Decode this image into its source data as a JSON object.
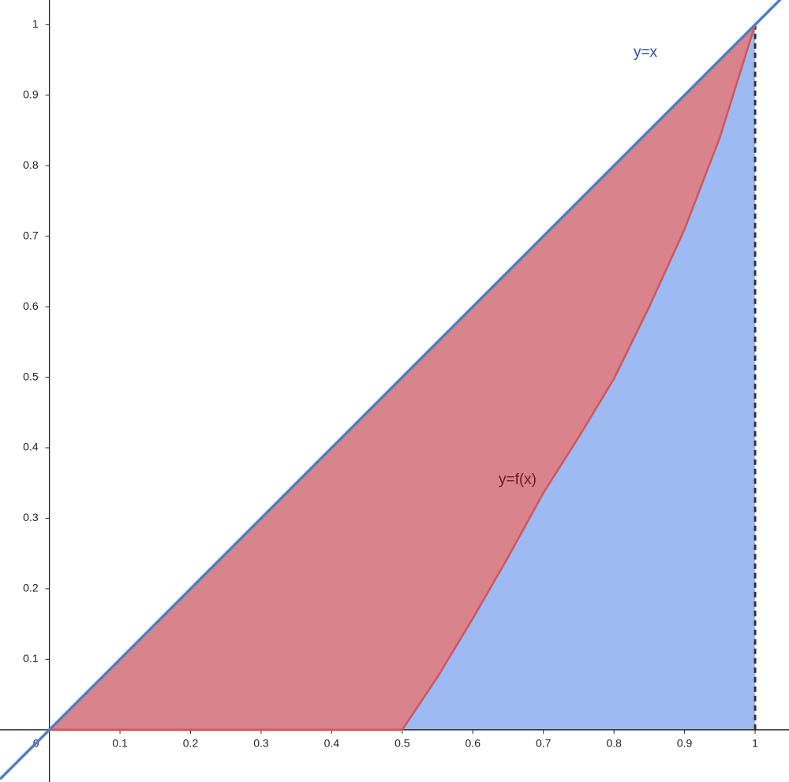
{
  "chart_data": {
    "type": "line",
    "xlim": [
      -0.07,
      1.048
    ],
    "ylim": [
      -0.074,
      1.035
    ],
    "xticks": [
      0,
      0.1,
      0.2,
      0.3,
      0.4,
      0.5,
      0.6,
      0.7,
      0.8,
      0.9,
      1
    ],
    "yticks": [
      0.1,
      0.2,
      0.3,
      0.4,
      0.5,
      0.6,
      0.7,
      0.8,
      0.9,
      1
    ],
    "series": [
      {
        "name": "y=x",
        "color": "#4a80c8",
        "label_color": "#2a4fa8",
        "x": [
          -0.07,
          1.048
        ],
        "values": [
          -0.07,
          1.048
        ]
      },
      {
        "name": "y=f(x)",
        "color": "#e0504c",
        "label_color": "#6e1a22",
        "x": [
          0,
          0.5,
          0.55,
          0.6,
          0.65,
          0.7,
          0.75,
          0.8,
          0.85,
          0.9,
          0.95,
          1
        ],
        "values": [
          0,
          0,
          0.075,
          0.158,
          0.245,
          0.336,
          0.415,
          0.498,
          0.6,
          0.71,
          0.84,
          1
        ]
      }
    ],
    "fill_between_color": "#d9838c",
    "fill_under_color": "#9dbaf2",
    "vline": 1,
    "vline_color": "#333333"
  }
}
